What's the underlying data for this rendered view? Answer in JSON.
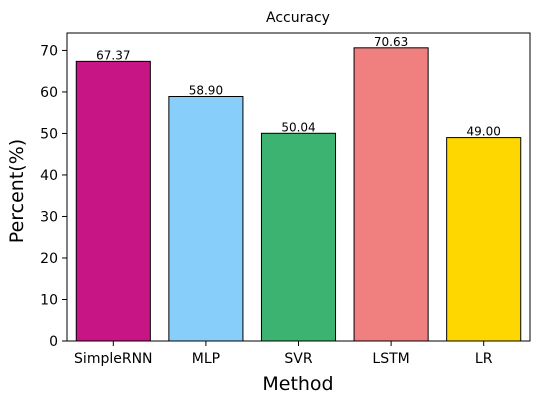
{
  "chart_data": {
    "type": "bar",
    "title": "Accuracy",
    "xlabel": "Method",
    "ylabel": "Percent(%)",
    "categories": [
      "SimpleRNN",
      "MLP",
      "SVR",
      "LSTM",
      "LR"
    ],
    "values": [
      67.37,
      58.9,
      50.04,
      70.63,
      49.0
    ],
    "value_labels": [
      "67.37",
      "58.90",
      "50.04",
      "70.63",
      "49.00"
    ],
    "colors": [
      "#c71585",
      "#87cefa",
      "#3cb371",
      "#f08080",
      "#ffd700"
    ],
    "edge_color": "#000000",
    "ylim": [
      0,
      74.2
    ],
    "yticks": [
      0,
      10,
      20,
      30,
      40,
      50,
      60,
      70
    ],
    "grid": false,
    "legend": "none"
  }
}
